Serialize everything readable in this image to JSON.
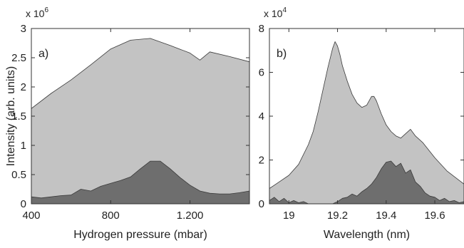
{
  "colors": {
    "light_fill": "#c3c3c3",
    "dark_fill": "#6e6e6e",
    "outline": "#3a3a3a",
    "frame": "#333333"
  },
  "chart_data": [
    {
      "type": "area",
      "panel_label": "a)",
      "xlabel": "Hydrogen pressure (mbar)",
      "ylabel": "Intensity (arb. units)",
      "y_multiplier": {
        "base": "x 10",
        "exponent": "6"
      },
      "xlim": [
        400,
        1500
      ],
      "ylim": [
        0,
        3
      ],
      "x_ticks": [
        400,
        800,
        1200
      ],
      "x_tick_labels": [
        "400",
        "800",
        "1.200"
      ],
      "y_ticks": [
        0,
        0.5,
        1,
        1.5,
        2,
        2.5,
        3
      ],
      "y_tick_labels": [
        "0",
        "0.5",
        "1",
        "1.5",
        "2",
        "2.5",
        "3"
      ],
      "grid": false,
      "series": [
        {
          "x": [
            400,
            500,
            600,
            700,
            800,
            900,
            1000,
            1100,
            1200,
            1250,
            1300,
            1400,
            1500
          ],
          "values": [
            1.63,
            1.89,
            2.12,
            2.38,
            2.65,
            2.8,
            2.83,
            2.71,
            2.58,
            2.46,
            2.6,
            2.52,
            2.43
          ]
        },
        {
          "x": [
            400,
            450,
            500,
            550,
            600,
            650,
            700,
            750,
            800,
            850,
            900,
            950,
            1000,
            1050,
            1100,
            1150,
            1200,
            1250,
            1300,
            1350,
            1400,
            1450,
            1500
          ],
          "values": [
            0.12,
            0.1,
            0.12,
            0.14,
            0.15,
            0.25,
            0.22,
            0.3,
            0.35,
            0.4,
            0.46,
            0.6,
            0.73,
            0.73,
            0.6,
            0.45,
            0.32,
            0.22,
            0.18,
            0.17,
            0.17,
            0.19,
            0.22
          ]
        }
      ]
    },
    {
      "type": "area",
      "panel_label": "b)",
      "xlabel": "Wavelength (nm)",
      "ylabel": "",
      "y_multiplier": {
        "base": "x 10",
        "exponent": "4"
      },
      "xlim": [
        18.92,
        19.72
      ],
      "ylim": [
        0,
        8
      ],
      "x_ticks": [
        19,
        19.2,
        19.4,
        19.6
      ],
      "x_tick_labels": [
        "19",
        "19.2",
        "19.4",
        "19.6"
      ],
      "y_ticks": [
        0,
        2,
        4,
        6,
        8
      ],
      "y_tick_labels": [
        "0",
        "2",
        "4",
        "6",
        "8"
      ],
      "grid": false,
      "series": [
        {
          "x": [
            18.92,
            18.96,
            19.0,
            19.04,
            19.08,
            19.1,
            19.12,
            19.14,
            19.16,
            19.18,
            19.19,
            19.2,
            19.21,
            19.22,
            19.24,
            19.26,
            19.28,
            19.3,
            19.32,
            19.34,
            19.35,
            19.36,
            19.38,
            19.4,
            19.42,
            19.44,
            19.46,
            19.48,
            19.5,
            19.52,
            19.55,
            19.6,
            19.65,
            19.72
          ],
          "values": [
            0.7,
            1.0,
            1.3,
            1.8,
            2.7,
            3.3,
            4.2,
            5.2,
            6.2,
            7.1,
            7.4,
            7.2,
            6.8,
            6.3,
            5.6,
            5.0,
            4.6,
            4.4,
            4.5,
            4.9,
            4.9,
            4.7,
            4.1,
            3.6,
            3.3,
            3.1,
            3.0,
            3.2,
            3.4,
            3.1,
            2.8,
            2.1,
            1.5,
            0.9
          ]
        },
        {
          "x": [
            18.92,
            18.94,
            18.96,
            18.98,
            19.0,
            19.02,
            19.04,
            19.06,
            19.08,
            19.1,
            19.12,
            19.14,
            19.16,
            19.18,
            19.2,
            19.22,
            19.24,
            19.26,
            19.28,
            19.3,
            19.32,
            19.34,
            19.36,
            19.38,
            19.4,
            19.42,
            19.44,
            19.46,
            19.48,
            19.5,
            19.52,
            19.54,
            19.56,
            19.58,
            19.6,
            19.62,
            19.64,
            19.66,
            19.68,
            19.7,
            19.72
          ],
          "values": [
            0.15,
            0.3,
            0.1,
            0.25,
            0.05,
            0.15,
            0.05,
            0.1,
            0.0,
            0.0,
            0.0,
            0.0,
            0.0,
            0.0,
            0.1,
            0.25,
            0.3,
            0.45,
            0.35,
            0.55,
            0.7,
            0.9,
            1.2,
            1.6,
            1.9,
            1.95,
            1.7,
            1.85,
            1.4,
            1.55,
            1.0,
            0.8,
            0.5,
            0.35,
            0.3,
            0.15,
            0.25,
            0.1,
            0.15,
            0.05,
            0.1
          ]
        }
      ]
    }
  ]
}
